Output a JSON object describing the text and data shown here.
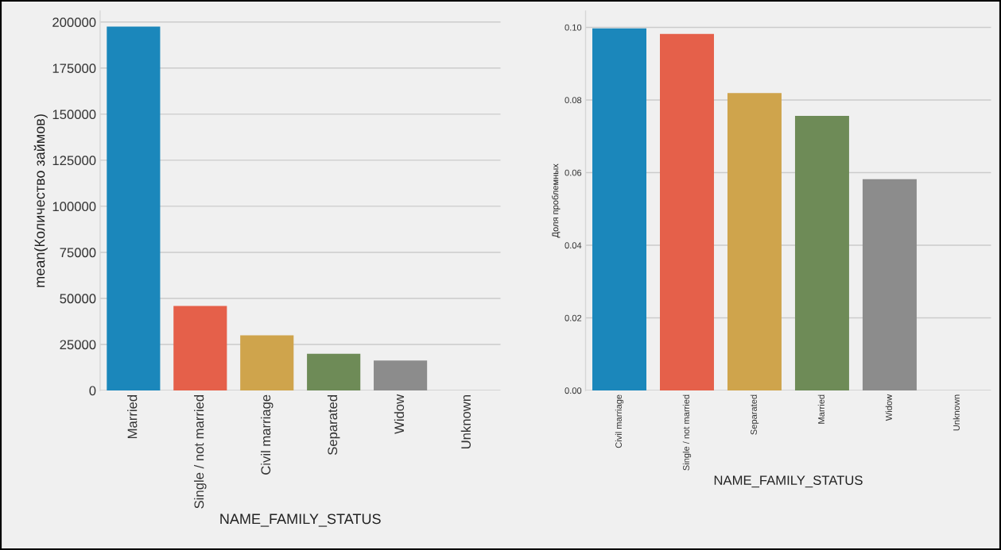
{
  "chart_data": [
    {
      "type": "bar",
      "xlabel": "NAME_FAMILY_STATUS",
      "ylabel": "mean(Количество займов)",
      "categories": [
        "Married",
        "Single / not married",
        "Civil marriage",
        "Separated",
        "Widow",
        "Unknown"
      ],
      "values": [
        197500,
        45900,
        30000,
        19900,
        16300,
        0
      ],
      "colors": [
        "#1b87bb",
        "#e5604a",
        "#cfa44c",
        "#6e8b57",
        "#8c8c8c",
        "#c85a9a"
      ],
      "ylim": [
        0,
        206000
      ],
      "yticks": [
        0,
        25000,
        50000,
        75000,
        100000,
        125000,
        150000,
        175000,
        200000
      ],
      "grid": "y"
    },
    {
      "type": "bar",
      "xlabel": "NAME_FAMILY_STATUS",
      "ylabel": "Доля проблемных",
      "categories": [
        "Civil marriage",
        "Single / not married",
        "Separated",
        "Married",
        "Widow",
        "Unknown"
      ],
      "values": [
        0.0997,
        0.0982,
        0.0819,
        0.0756,
        0.0582,
        0
      ],
      "colors": [
        "#1b87bb",
        "#e5604a",
        "#cfa44c",
        "#6e8b57",
        "#8c8c8c",
        "#c85a9a"
      ],
      "ylim": [
        0,
        0.1045
      ],
      "yticks": [
        {
          "value": 0,
          "label": "0.00"
        },
        {
          "value": 0.02,
          "label": "0.02"
        },
        {
          "value": 0.04,
          "label": "0.04"
        },
        {
          "value": 0.06,
          "label": "0.06"
        },
        {
          "value": 0.08,
          "label": "0.08"
        },
        {
          "value": 0.1,
          "label": "0.10"
        }
      ],
      "grid": "y"
    }
  ]
}
